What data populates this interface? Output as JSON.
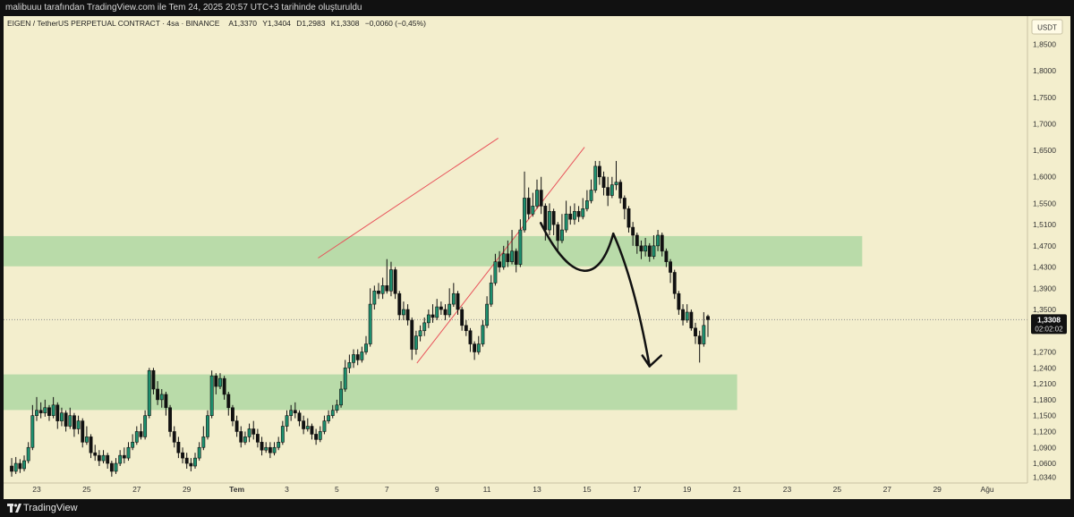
{
  "header": {
    "attribution": "malibuuu tarafından TradingView.com ile Tem 24, 2025 20:57 UTC+3 tarihinde oluşturuldu"
  },
  "footer": {
    "brand": "TradingView"
  },
  "colors": {
    "background": "#f3eecd",
    "candle_up": "#1d8f6e",
    "candle_down": "#111111",
    "zone_fill": "#b9dba9",
    "trendline": "#e8525a",
    "price_line": "#8e8e8e"
  },
  "chart_data": {
    "type": "candlestick",
    "legend": {
      "symbol": "EIGEN / TetherUS PERPETUAL CONTRACT · 4sa · BINANCE",
      "open_label": "A",
      "open": "1,3370",
      "high_label": "Y",
      "high": "1,3404",
      "low_label": "D",
      "low": "1,2983",
      "close_label": "K",
      "close": "1,3308",
      "change": "−0,0060 (−0,45%)"
    },
    "currency": "USDT",
    "y_range": [
      1.023,
      1.903
    ],
    "y_ticks": [
      "1,8500",
      "1,8000",
      "1,7500",
      "1,7000",
      "1,6500",
      "1,6000",
      "1,5500",
      "1,5100",
      "1,4700",
      "1,4300",
      "1,3900",
      "1,3500",
      "1,2700",
      "1,2400",
      "1,2100",
      "1,1800",
      "1,1500",
      "1,1200",
      "1,0900",
      "1,0600",
      "1,0340"
    ],
    "x_ticks": [
      "23",
      "25",
      "27",
      "29",
      "Tem",
      "3",
      "5",
      "7",
      "9",
      "11",
      "13",
      "15",
      "17",
      "19",
      "21",
      "23",
      "25",
      "27",
      "29",
      "Ağu"
    ],
    "last_price": "1,3308",
    "countdown": "02:02:02",
    "zones": [
      {
        "from": 1.4314,
        "to": 1.4884,
        "end_day": 33
      },
      {
        "from": 1.1606,
        "to": 1.2277,
        "end_day": 28
      }
    ],
    "trendlines": [
      {
        "start_day": 11.25,
        "start_price": 1.447,
        "end_day": 18.45,
        "end_price": 1.673
      },
      {
        "start_day": 15.2,
        "start_price": 1.249,
        "end_day": 21.9,
        "end_price": 1.656
      }
    ],
    "drawings": [
      {
        "kind": "curve",
        "points": [
          [
            20.15,
            1.513
          ],
          [
            21.4,
            1.395
          ],
          [
            22.5,
            1.398
          ],
          [
            23.05,
            1.493
          ]
        ]
      },
      {
        "kind": "arrow",
        "points": [
          [
            23.05,
            1.493
          ],
          [
            23.9,
            1.403
          ],
          [
            24.5,
            1.243
          ]
        ]
      }
    ],
    "candles": [
      [
        1.055,
        1.045,
        1.07,
        1.035
      ],
      [
        1.045,
        1.06,
        1.072,
        1.04
      ],
      [
        1.06,
        1.05,
        1.068,
        1.042
      ],
      [
        1.05,
        1.065,
        1.075,
        1.045
      ],
      [
        1.065,
        1.09,
        1.1,
        1.06
      ],
      [
        1.09,
        1.15,
        1.17,
        1.085
      ],
      [
        1.15,
        1.16,
        1.185,
        1.14
      ],
      [
        1.16,
        1.155,
        1.175,
        1.145
      ],
      [
        1.155,
        1.165,
        1.18,
        1.148
      ],
      [
        1.165,
        1.15,
        1.17,
        1.14
      ],
      [
        1.15,
        1.17,
        1.185,
        1.145
      ],
      [
        1.17,
        1.14,
        1.175,
        1.125
      ],
      [
        1.14,
        1.155,
        1.165,
        1.13
      ],
      [
        1.155,
        1.13,
        1.16,
        1.12
      ],
      [
        1.13,
        1.15,
        1.165,
        1.125
      ],
      [
        1.15,
        1.125,
        1.155,
        1.11
      ],
      [
        1.125,
        1.14,
        1.15,
        1.115
      ],
      [
        1.14,
        1.1,
        1.145,
        1.09
      ],
      [
        1.1,
        1.11,
        1.13,
        1.095
      ],
      [
        1.11,
        1.08,
        1.115,
        1.07
      ],
      [
        1.08,
        1.075,
        1.095,
        1.065
      ],
      [
        1.075,
        1.065,
        1.085,
        1.055
      ],
      [
        1.065,
        1.075,
        1.085,
        1.06
      ],
      [
        1.075,
        1.06,
        1.08,
        1.05
      ],
      [
        1.06,
        1.045,
        1.065,
        1.035
      ],
      [
        1.045,
        1.06,
        1.07,
        1.04
      ],
      [
        1.06,
        1.075,
        1.085,
        1.055
      ],
      [
        1.075,
        1.07,
        1.09,
        1.06
      ],
      [
        1.07,
        1.09,
        1.1,
        1.065
      ],
      [
        1.09,
        1.1,
        1.115,
        1.085
      ],
      [
        1.1,
        1.12,
        1.13,
        1.095
      ],
      [
        1.12,
        1.11,
        1.135,
        1.105
      ],
      [
        1.11,
        1.15,
        1.16,
        1.105
      ],
      [
        1.15,
        1.235,
        1.24,
        1.145
      ],
      [
        1.235,
        1.2,
        1.24,
        1.19
      ],
      [
        1.2,
        1.18,
        1.215,
        1.17
      ],
      [
        1.18,
        1.19,
        1.2,
        1.165
      ],
      [
        1.19,
        1.165,
        1.195,
        1.15
      ],
      [
        1.165,
        1.12,
        1.17,
        1.11
      ],
      [
        1.12,
        1.1,
        1.13,
        1.09
      ],
      [
        1.1,
        1.08,
        1.11,
        1.07
      ],
      [
        1.08,
        1.07,
        1.09,
        1.06
      ],
      [
        1.07,
        1.06,
        1.08,
        1.05
      ],
      [
        1.06,
        1.055,
        1.07,
        1.045
      ],
      [
        1.055,
        1.07,
        1.08,
        1.05
      ],
      [
        1.07,
        1.09,
        1.1,
        1.065
      ],
      [
        1.09,
        1.11,
        1.13,
        1.085
      ],
      [
        1.11,
        1.15,
        1.16,
        1.105
      ],
      [
        1.15,
        1.225,
        1.235,
        1.145
      ],
      [
        1.225,
        1.205,
        1.23,
        1.19
      ],
      [
        1.205,
        1.22,
        1.23,
        1.2
      ],
      [
        1.22,
        1.19,
        1.225,
        1.18
      ],
      [
        1.19,
        1.165,
        1.195,
        1.15
      ],
      [
        1.165,
        1.14,
        1.17,
        1.13
      ],
      [
        1.14,
        1.12,
        1.15,
        1.11
      ],
      [
        1.12,
        1.1,
        1.13,
        1.09
      ],
      [
        1.1,
        1.11,
        1.12,
        1.095
      ],
      [
        1.11,
        1.125,
        1.135,
        1.1
      ],
      [
        1.125,
        1.115,
        1.14,
        1.105
      ],
      [
        1.115,
        1.1,
        1.125,
        1.09
      ],
      [
        1.1,
        1.085,
        1.11,
        1.075
      ],
      [
        1.085,
        1.09,
        1.1,
        1.08
      ],
      [
        1.09,
        1.08,
        1.1,
        1.07
      ],
      [
        1.08,
        1.09,
        1.1,
        1.075
      ],
      [
        1.09,
        1.1,
        1.11,
        1.085
      ],
      [
        1.1,
        1.13,
        1.14,
        1.095
      ],
      [
        1.13,
        1.15,
        1.16,
        1.12
      ],
      [
        1.15,
        1.16,
        1.17,
        1.14
      ],
      [
        1.16,
        1.155,
        1.175,
        1.145
      ],
      [
        1.155,
        1.14,
        1.16,
        1.13
      ],
      [
        1.14,
        1.125,
        1.15,
        1.115
      ],
      [
        1.125,
        1.13,
        1.145,
        1.12
      ],
      [
        1.13,
        1.115,
        1.135,
        1.105
      ],
      [
        1.115,
        1.105,
        1.125,
        1.095
      ],
      [
        1.105,
        1.12,
        1.13,
        1.1
      ],
      [
        1.12,
        1.14,
        1.15,
        1.115
      ],
      [
        1.14,
        1.15,
        1.16,
        1.135
      ],
      [
        1.15,
        1.16,
        1.17,
        1.145
      ],
      [
        1.16,
        1.17,
        1.18,
        1.155
      ],
      [
        1.17,
        1.2,
        1.215,
        1.165
      ],
      [
        1.2,
        1.24,
        1.255,
        1.195
      ],
      [
        1.24,
        1.25,
        1.265,
        1.23
      ],
      [
        1.25,
        1.265,
        1.275,
        1.24
      ],
      [
        1.265,
        1.255,
        1.275,
        1.245
      ],
      [
        1.255,
        1.27,
        1.28,
        1.25
      ],
      [
        1.27,
        1.285,
        1.3,
        1.265
      ],
      [
        1.285,
        1.36,
        1.39,
        1.28
      ],
      [
        1.36,
        1.385,
        1.395,
        1.35
      ],
      [
        1.385,
        1.38,
        1.4,
        1.37
      ],
      [
        1.38,
        1.395,
        1.41,
        1.37
      ],
      [
        1.395,
        1.385,
        1.445,
        1.38
      ],
      [
        1.385,
        1.425,
        1.44,
        1.375
      ],
      [
        1.425,
        1.38,
        1.43,
        1.37
      ],
      [
        1.38,
        1.34,
        1.385,
        1.33
      ],
      [
        1.34,
        1.35,
        1.365,
        1.33
      ],
      [
        1.35,
        1.33,
        1.36,
        1.32
      ],
      [
        1.33,
        1.275,
        1.335,
        1.255
      ],
      [
        1.275,
        1.3,
        1.31,
        1.265
      ],
      [
        1.3,
        1.31,
        1.32,
        1.29
      ],
      [
        1.31,
        1.325,
        1.335,
        1.3
      ],
      [
        1.325,
        1.34,
        1.35,
        1.315
      ],
      [
        1.34,
        1.335,
        1.36,
        1.325
      ],
      [
        1.335,
        1.355,
        1.37,
        1.33
      ],
      [
        1.355,
        1.35,
        1.365,
        1.34
      ],
      [
        1.35,
        1.34,
        1.36,
        1.33
      ],
      [
        1.34,
        1.36,
        1.39,
        1.335
      ],
      [
        1.36,
        1.38,
        1.4,
        1.355
      ],
      [
        1.38,
        1.35,
        1.385,
        1.34
      ],
      [
        1.35,
        1.32,
        1.355,
        1.31
      ],
      [
        1.32,
        1.31,
        1.33,
        1.3
      ],
      [
        1.31,
        1.285,
        1.315,
        1.27
      ],
      [
        1.285,
        1.27,
        1.29,
        1.255
      ],
      [
        1.27,
        1.285,
        1.3,
        1.265
      ],
      [
        1.285,
        1.32,
        1.33,
        1.28
      ],
      [
        1.32,
        1.36,
        1.375,
        1.315
      ],
      [
        1.36,
        1.4,
        1.415,
        1.355
      ],
      [
        1.4,
        1.44,
        1.455,
        1.395
      ],
      [
        1.44,
        1.43,
        1.46,
        1.42
      ],
      [
        1.43,
        1.455,
        1.47,
        1.425
      ],
      [
        1.455,
        1.44,
        1.48,
        1.43
      ],
      [
        1.44,
        1.46,
        1.5,
        1.435
      ],
      [
        1.46,
        1.435,
        1.465,
        1.42
      ],
      [
        1.435,
        1.5,
        1.52,
        1.43
      ],
      [
        1.5,
        1.56,
        1.61,
        1.495
      ],
      [
        1.56,
        1.53,
        1.58,
        1.52
      ],
      [
        1.53,
        1.545,
        1.57,
        1.525
      ],
      [
        1.545,
        1.575,
        1.595,
        1.54
      ],
      [
        1.575,
        1.545,
        1.6,
        1.53
      ],
      [
        1.545,
        1.5,
        1.55,
        1.48
      ],
      [
        1.5,
        1.535,
        1.55,
        1.49
      ],
      [
        1.535,
        1.51,
        1.54,
        1.49
      ],
      [
        1.51,
        1.48,
        1.515,
        1.46
      ],
      [
        1.48,
        1.5,
        1.53,
        1.475
      ],
      [
        1.5,
        1.53,
        1.555,
        1.495
      ],
      [
        1.53,
        1.52,
        1.545,
        1.51
      ],
      [
        1.52,
        1.535,
        1.55,
        1.51
      ],
      [
        1.535,
        1.525,
        1.545,
        1.515
      ],
      [
        1.525,
        1.54,
        1.56,
        1.52
      ],
      [
        1.54,
        1.555,
        1.575,
        1.535
      ],
      [
        1.555,
        1.575,
        1.595,
        1.55
      ],
      [
        1.575,
        1.62,
        1.63,
        1.57
      ],
      [
        1.62,
        1.6,
        1.63,
        1.585
      ],
      [
        1.6,
        1.58,
        1.61,
        1.565
      ],
      [
        1.58,
        1.565,
        1.6,
        1.545
      ],
      [
        1.565,
        1.585,
        1.6,
        1.56
      ],
      [
        1.585,
        1.59,
        1.63,
        1.575
      ],
      [
        1.59,
        1.56,
        1.595,
        1.55
      ],
      [
        1.56,
        1.54,
        1.565,
        1.52
      ],
      [
        1.54,
        1.505,
        1.545,
        1.495
      ],
      [
        1.505,
        1.49,
        1.515,
        1.47
      ],
      [
        1.49,
        1.47,
        1.495,
        1.455
      ],
      [
        1.47,
        1.46,
        1.48,
        1.445
      ],
      [
        1.46,
        1.47,
        1.485,
        1.45
      ],
      [
        1.47,
        1.45,
        1.475,
        1.44
      ],
      [
        1.45,
        1.47,
        1.49,
        1.445
      ],
      [
        1.47,
        1.49,
        1.5,
        1.46
      ],
      [
        1.49,
        1.46,
        1.495,
        1.45
      ],
      [
        1.46,
        1.44,
        1.465,
        1.43
      ],
      [
        1.44,
        1.42,
        1.445,
        1.4
      ],
      [
        1.42,
        1.38,
        1.425,
        1.37
      ],
      [
        1.38,
        1.35,
        1.385,
        1.34
      ],
      [
        1.35,
        1.33,
        1.36,
        1.32
      ],
      [
        1.33,
        1.345,
        1.36,
        1.325
      ],
      [
        1.345,
        1.315,
        1.35,
        1.31
      ],
      [
        1.315,
        1.3,
        1.325,
        1.285
      ],
      [
        1.3,
        1.285,
        1.31,
        1.25
      ],
      [
        1.285,
        1.32,
        1.345,
        1.28
      ],
      [
        1.337,
        1.3308,
        1.3404,
        1.2983
      ]
    ]
  }
}
